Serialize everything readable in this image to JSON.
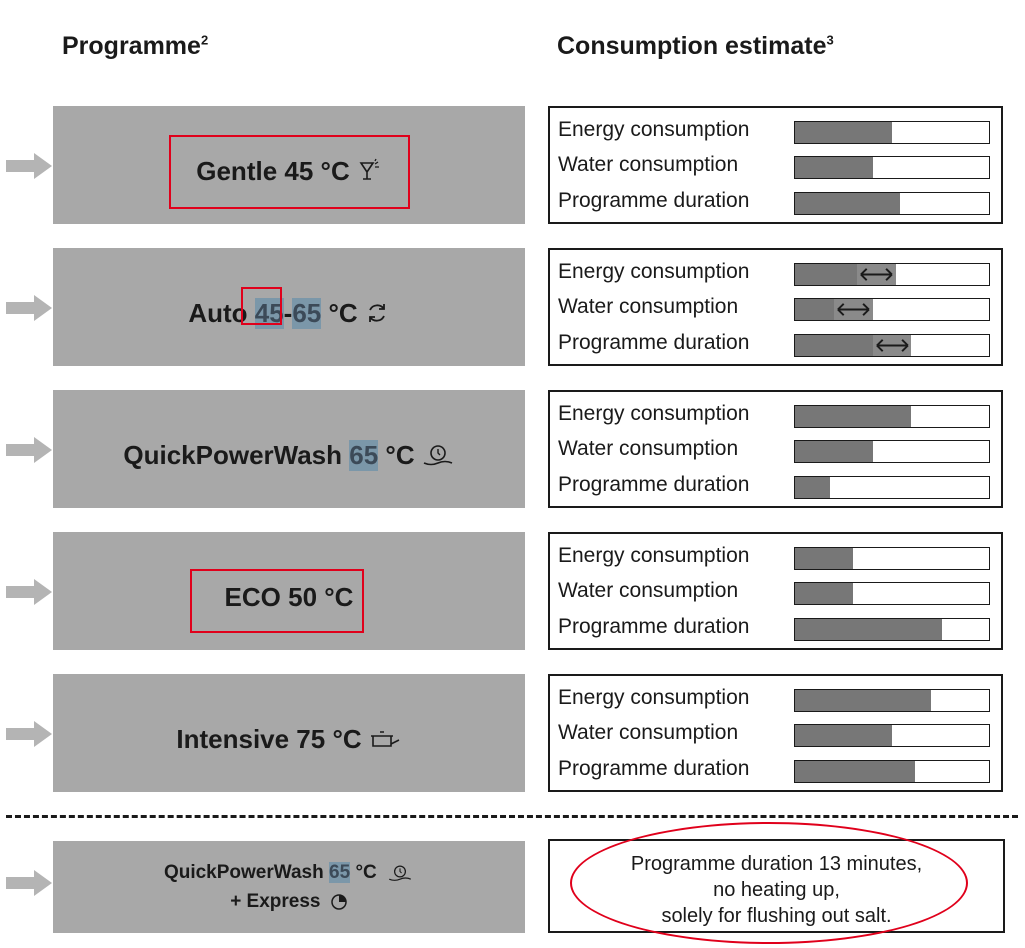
{
  "headers": {
    "programme": "Programme",
    "programme_sup": "2",
    "consumption": "Consumption estimate",
    "consumption_sup": "3"
  },
  "labels": {
    "energy": "Energy consumption",
    "water": "Water consumption",
    "duration": "Programme duration"
  },
  "programmes": [
    {
      "name": "Gentle",
      "temp": "45 °C",
      "icon": "glass-icon",
      "energy": 0.5,
      "water": 0.4,
      "duration": 0.54
    },
    {
      "name": "Auto",
      "temp_low": "45",
      "dash": "-",
      "temp_high": "65",
      "unit": "°C",
      "icon": "auto-cycle-icon",
      "energy": {
        "fill": 0.32,
        "range": [
          0.32,
          0.52
        ]
      },
      "water": {
        "fill": 0.2,
        "range": [
          0.2,
          0.4
        ]
      },
      "duration": {
        "fill": 0.4,
        "range": [
          0.4,
          0.6
        ]
      }
    },
    {
      "name": "QuickPowerWash",
      "temp": "65",
      "unit": "°C",
      "icon": "quick-clock-icon",
      "energy": 0.6,
      "water": 0.4,
      "duration": 0.18
    },
    {
      "name": "ECO 50 °C",
      "energy": 0.3,
      "water": 0.3,
      "duration": 0.76
    },
    {
      "name": "Intensive 75 °C",
      "icon": "pot-icon",
      "energy": 0.7,
      "water": 0.5,
      "duration": 0.62
    }
  ],
  "express": {
    "name": "QuickPowerWash",
    "temp": "65",
    "unit": "°C",
    "icon": "quick-clock-icon",
    "line2": "+ Express",
    "icon2": "express-icon",
    "note": [
      "Programme duration 13 minutes,",
      "no heating up,",
      "solely for flushing out salt."
    ]
  },
  "colors": {
    "panel": "#a8a8a8",
    "bar": "#777777",
    "highlight": "#7b97a9",
    "annotation": "#e0001b"
  }
}
